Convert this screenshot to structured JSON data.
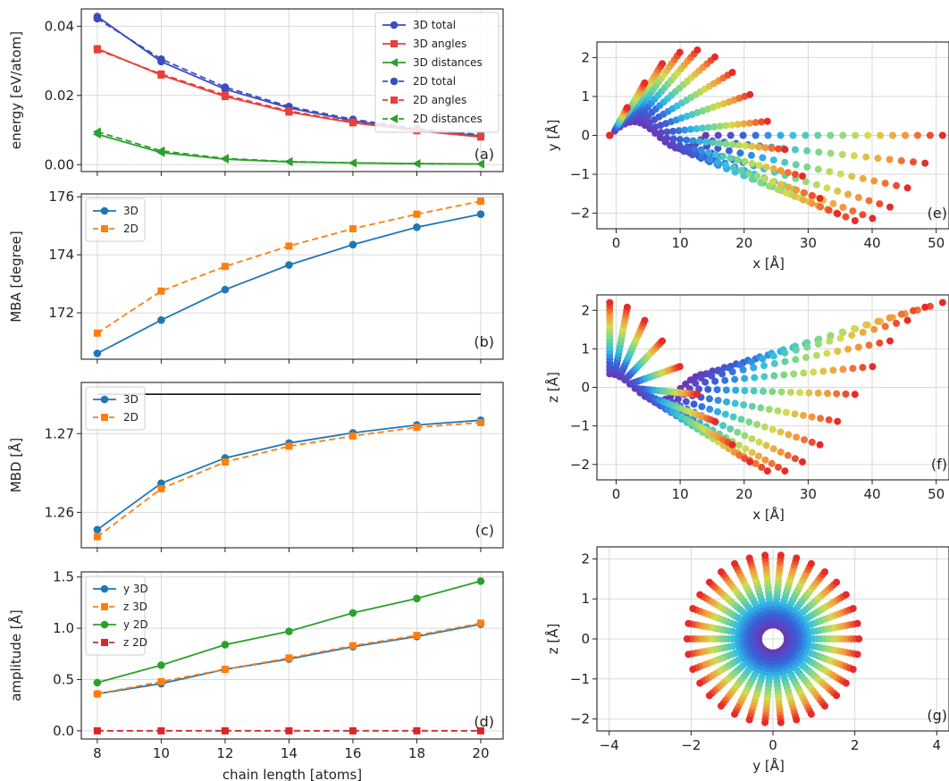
{
  "figure": {
    "xlabel_left": "chain length [atoms]",
    "colors": {
      "blue3D": "#3b4cc0",
      "red3D": "#e8403a",
      "green3D": "#2ca02c",
      "mplBlue": "#1f77b4",
      "mplOrange": "#ff7f0e",
      "mplGreen": "#2ca02c",
      "mplRed": "#d62728",
      "refLine": "#111111",
      "grid": "#d9d9d9"
    }
  },
  "chart_data": [
    {
      "id": "a",
      "type": "line",
      "panel_label": "(a)",
      "ylabel": "energy [eV/atom]",
      "x": [
        8,
        10,
        12,
        14,
        16,
        18,
        20
      ],
      "xlim": [
        7.5,
        20.7
      ],
      "ylim": [
        -0.002,
        0.045
      ],
      "xticks": [
        8,
        10,
        12,
        14,
        16,
        18,
        20
      ],
      "yticks": [
        0.0,
        0.02,
        0.04
      ],
      "ytick_labels": [
        "0.00",
        "0.02",
        "0.04"
      ],
      "show_xtick_labels": false,
      "grid": true,
      "legend_position": "top-right",
      "series": [
        {
          "name": "3D total",
          "values": [
            0.0428,
            0.0298,
            0.0218,
            0.0164,
            0.0127,
            0.0101,
            0.0083
          ],
          "color": "#3b4cc0",
          "dash": false,
          "marker": "circle"
        },
        {
          "name": "3D angles",
          "values": [
            0.0335,
            0.0259,
            0.0197,
            0.0152,
            0.0121,
            0.0098,
            0.008
          ],
          "color": "#e8403a",
          "dash": false,
          "marker": "square"
        },
        {
          "name": "3D distances",
          "values": [
            0.0088,
            0.0035,
            0.0016,
            0.0008,
            0.0005,
            0.0003,
            0.0002
          ],
          "color": "#2ca02c",
          "dash": false,
          "marker": "triangle"
        },
        {
          "name": "2D total",
          "values": [
            0.0422,
            0.0305,
            0.0224,
            0.0168,
            0.0131,
            0.0104,
            0.0086
          ],
          "color": "#3b4cc0",
          "dash": true,
          "marker": "circle"
        },
        {
          "name": "2D angles",
          "values": [
            0.0332,
            0.0262,
            0.0201,
            0.0155,
            0.0123,
            0.0099,
            0.0081
          ],
          "color": "#e8403a",
          "dash": true,
          "marker": "square"
        },
        {
          "name": "2D distances",
          "values": [
            0.0095,
            0.004,
            0.0018,
            0.0009,
            0.0005,
            0.0003,
            0.0002
          ],
          "color": "#2ca02c",
          "dash": true,
          "marker": "triangle"
        }
      ]
    },
    {
      "id": "b",
      "type": "line",
      "panel_label": "(b)",
      "ylabel": "MBA [degree]",
      "x": [
        8,
        10,
        12,
        14,
        16,
        18,
        20
      ],
      "xlim": [
        7.5,
        20.7
      ],
      "ylim": [
        170.4,
        176.1
      ],
      "xticks": [
        8,
        10,
        12,
        14,
        16,
        18,
        20
      ],
      "yticks": [
        172,
        174,
        176
      ],
      "ytick_labels": [
        "172",
        "174",
        "176"
      ],
      "show_xtick_labels": false,
      "grid": true,
      "legend_position": "top-left",
      "series": [
        {
          "name": "3D",
          "values": [
            170.6,
            171.75,
            172.8,
            173.65,
            174.35,
            174.95,
            175.4
          ],
          "color": "#1f77b4",
          "dash": false,
          "marker": "circle"
        },
        {
          "name": "2D",
          "values": [
            171.3,
            172.75,
            173.6,
            174.3,
            174.9,
            175.4,
            175.85
          ],
          "color": "#ff7f0e",
          "dash": true,
          "marker": "square"
        }
      ]
    },
    {
      "id": "c",
      "type": "line",
      "panel_label": "(c)",
      "ylabel": "MBD [Å]",
      "x": [
        8,
        10,
        12,
        14,
        16,
        18,
        20
      ],
      "xlim": [
        7.5,
        20.7
      ],
      "ylim": [
        1.2555,
        1.2765
      ],
      "xticks": [
        8,
        10,
        12,
        14,
        16,
        18,
        20
      ],
      "yticks": [
        1.26,
        1.27
      ],
      "ytick_labels": [
        "1.26",
        "1.27"
      ],
      "show_xtick_labels": false,
      "grid": true,
      "legend_position": "top-left",
      "reference_line": {
        "y": 1.275,
        "x_from": 8,
        "x_to": 20
      },
      "series": [
        {
          "name": "3D",
          "values": [
            1.2578,
            1.2637,
            1.2669,
            1.2688,
            1.2701,
            1.2711,
            1.2717
          ],
          "color": "#1f77b4",
          "dash": false,
          "marker": "circle"
        },
        {
          "name": "2D",
          "values": [
            1.2569,
            1.263,
            1.2664,
            1.2684,
            1.2697,
            1.2708,
            1.2714
          ],
          "color": "#ff7f0e",
          "dash": true,
          "marker": "square"
        }
      ]
    },
    {
      "id": "d",
      "type": "line",
      "panel_label": "(d)",
      "ylabel": "amplitude [Å]",
      "x": [
        8,
        10,
        12,
        14,
        16,
        18,
        20
      ],
      "xlim": [
        7.5,
        20.7
      ],
      "ylim": [
        -0.08,
        1.55
      ],
      "xticks": [
        8,
        10,
        12,
        14,
        16,
        18,
        20
      ],
      "yticks": [
        0.0,
        0.5,
        1.0,
        1.5
      ],
      "ytick_labels": [
        "0.0",
        "0.5",
        "1.0",
        "1.5"
      ],
      "show_xtick_labels": true,
      "xlabel": "chain length [atoms]",
      "grid": true,
      "legend_position": "top-left",
      "series": [
        {
          "name": "y 3D",
          "values": [
            0.36,
            0.46,
            0.6,
            0.7,
            0.82,
            0.92,
            1.04
          ],
          "color": "#1f77b4",
          "dash": false,
          "marker": "circle"
        },
        {
          "name": "z 3D",
          "values": [
            0.36,
            0.48,
            0.6,
            0.71,
            0.83,
            0.93,
            1.05
          ],
          "color": "#ff7f0e",
          "dash": true,
          "marker": "square"
        },
        {
          "name": "y 2D",
          "values": [
            0.47,
            0.64,
            0.84,
            0.97,
            1.15,
            1.29,
            1.46
          ],
          "color": "#2ca02c",
          "dash": false,
          "marker": "circle"
        },
        {
          "name": "z 2D",
          "values": [
            0.0,
            0.0,
            0.0,
            0.0,
            0.0,
            0.0,
            0.0
          ],
          "color": "#d62728",
          "dash": true,
          "marker": "square"
        }
      ]
    },
    {
      "id": "e",
      "type": "scatter",
      "panel_label": "(e)",
      "xlabel": "x [Å]",
      "ylabel": "y [Å]",
      "xlim": [
        -3,
        52
      ],
      "ylim": [
        -2.4,
        2.4
      ],
      "xticks": [
        0,
        10,
        20,
        30,
        40,
        50
      ],
      "yticks": [
        -2,
        -1,
        0,
        1,
        2
      ],
      "grid": true,
      "trajectory_family": {
        "projection": "xy",
        "frames": 20,
        "atoms_per_frame": 20,
        "length_start": 15,
        "length_end": 52,
        "amplitude_start": 0.35,
        "amplitude_end": 2.2,
        "phase": 0,
        "colormap": "rainbow"
      }
    },
    {
      "id": "f",
      "type": "scatter",
      "panel_label": "(f)",
      "xlabel": "x [Å]",
      "ylabel": "z [Å]",
      "xlim": [
        -3,
        52
      ],
      "ylim": [
        -2.4,
        2.4
      ],
      "xticks": [
        0,
        10,
        20,
        30,
        40,
        50
      ],
      "yticks": [
        -2,
        -1,
        0,
        1,
        2
      ],
      "grid": true,
      "trajectory_family": {
        "projection": "xz",
        "frames": 20,
        "atoms_per_frame": 20,
        "length_start": 15,
        "length_end": 52,
        "amplitude_start": 0.35,
        "amplitude_end": 2.2,
        "phase": 90,
        "colormap": "rainbow"
      }
    },
    {
      "id": "g",
      "type": "scatter",
      "panel_label": "(g)",
      "xlabel": "y [Å]",
      "ylabel": "z [Å]",
      "xlim": [
        -4.3,
        4.3
      ],
      "ylim": [
        -2.3,
        2.3
      ],
      "xticks": [
        -4,
        -2,
        0,
        2,
        4
      ],
      "yticks": [
        -2,
        -1,
        0,
        1,
        2
      ],
      "grid": true,
      "ring_family": {
        "rings": 20,
        "points_per_ring": 34,
        "radius_start": 0.35,
        "radius_end": 2.1,
        "colormap": "rainbow"
      }
    }
  ]
}
